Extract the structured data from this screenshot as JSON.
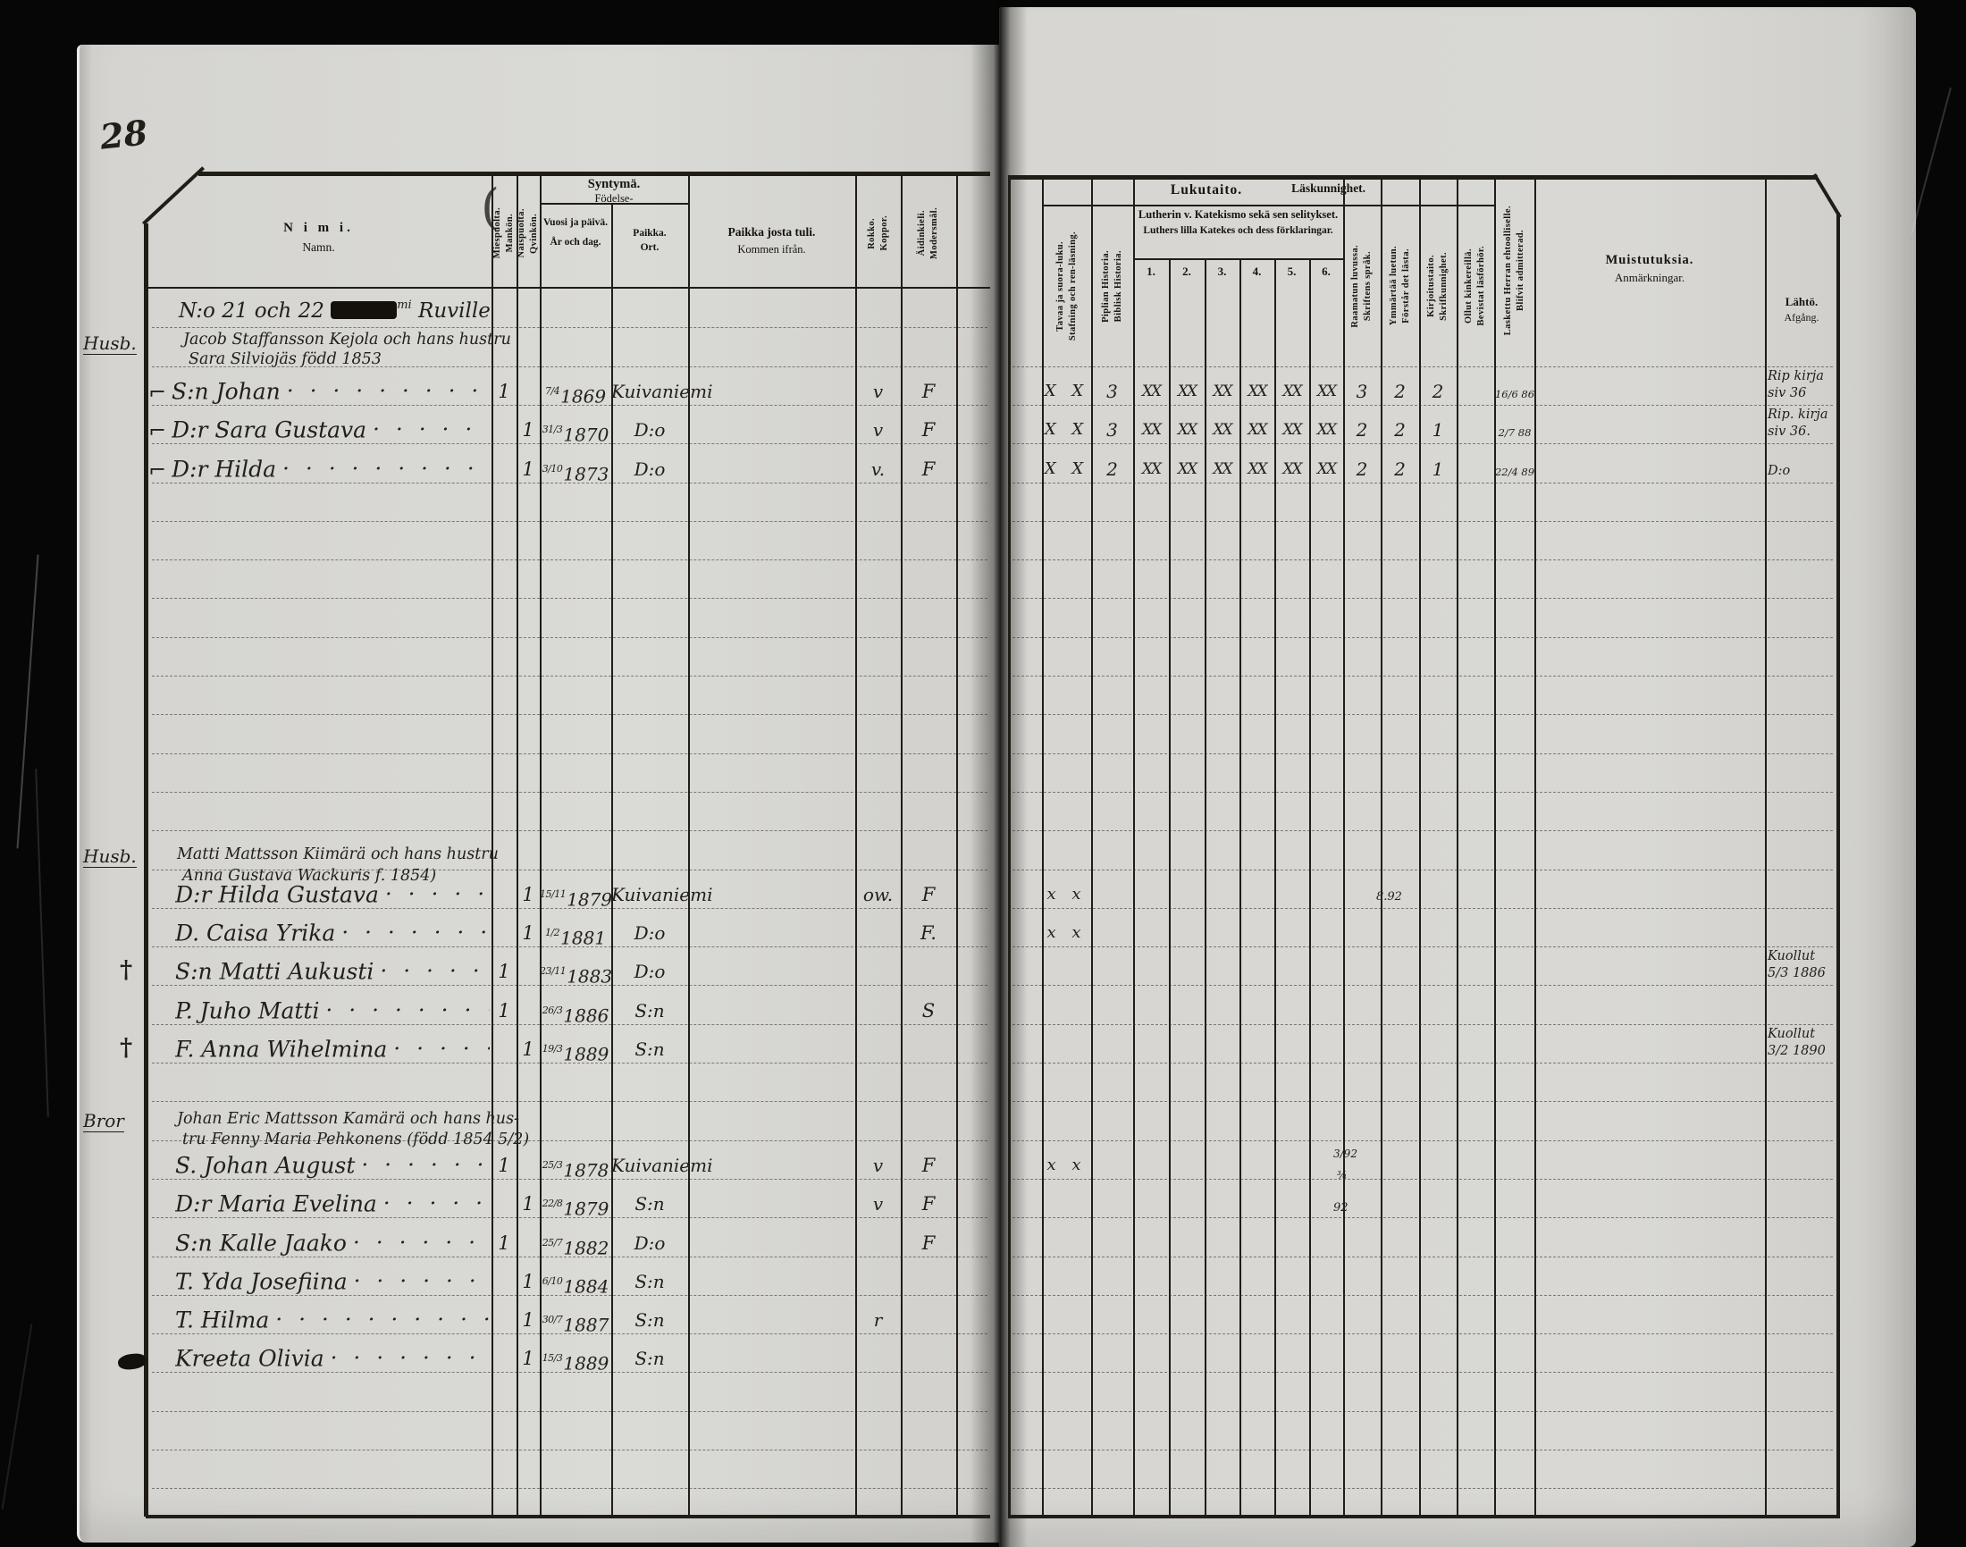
{
  "page_number": "28",
  "dot_leader": "· · · · · · · · · · · · · ·",
  "left_page": {
    "headers": {
      "name_fi": "N i m i.",
      "name_sv": "Namn.",
      "male_fi": "Miespuolta.",
      "male_sv": "Mankön.",
      "female_fi": "Naispuolta.",
      "female_sv": "Qvinkön.",
      "birth_fi": "Syntymä.",
      "birth_sv": "Födelse-",
      "date_fi": "Vuosi ja päivä.",
      "date_sv": "År och dag.",
      "place_fi": "Paikka.",
      "place_sv": "Ort.",
      "from_fi": "Paikka josta tuli.",
      "from_sv": "Kommen ifrån.",
      "pox_fi": "Rokko.",
      "pox_sv": "Koppor.",
      "tongue_fi": "Äidinkieli.",
      "tongue_sv": "Modersmål."
    }
  },
  "right_page": {
    "headers": {
      "reading_fi": "Lukutaito.",
      "reading_sv": "Läskunnighet.",
      "spelling_fi": "Tavaa ja suora-luku.",
      "spelling_sv": "Stafning och ren-läsning.",
      "bible_fi": "Piplian Historia.",
      "bible_sv": "Biblisk Historia.",
      "catechism_fi": "Lutherin v. Katekismo sekä sen selitykset.",
      "catechism_sv": "Luthers lilla Katekes och dess förklaringar.",
      "catechism_cols": [
        "1.",
        "2.",
        "3.",
        "4.",
        "5.",
        "6."
      ],
      "scripture_fi": "Raamatun luvussa.",
      "scripture_sv": "Skriftens språk.",
      "understands_fi": "Ymmärtää luetun.",
      "understands_sv": "Förstår det lästa.",
      "writing_fi": "Kirjoitustaito.",
      "writing_sv": "Skrifkunnighet.",
      "catechetical_fi": "Ollut kinkereillä.",
      "catechetical_sv": "Bevistat läsförhör.",
      "admitted_fi": "Laskettu Herran ehtoolliselle.",
      "admitted_sv": "Blifvit admitterad.",
      "remarks_fi": "Muistutuksia.",
      "remarks_sv": "Anmärkningar.",
      "departure_fi": "Lähtö.",
      "departure_sv": "Afgång."
    }
  },
  "families": [
    {
      "margin_label": "Husb.",
      "title": {
        "pre": "N:o 21 och 22 ",
        "struck": "Kanga",
        "sup": "mi",
        "post": " Ruville"
      },
      "parents": [
        "Jacob Staffansson Kejola och hans hustru",
        "Sara Silviojäs född 1853"
      ],
      "members": [
        {
          "mark": "bracket",
          "name": "S:n Johan",
          "mankon": "1",
          "date": "7/4",
          "year": "1869",
          "ort": "Kuivaniemi",
          "rokko": "v",
          "kieli": "F",
          "staf": "X X",
          "bibl": "3",
          "kat": [
            "XX",
            "XX",
            "XX",
            "XX",
            "XX",
            "XX"
          ],
          "sprak": "3",
          "forstar": "2",
          "skrif": "2",
          "admit": "16/6 86",
          "lahto": [
            "Rip kirja",
            "siv 36"
          ]
        },
        {
          "mark": "bracket",
          "name": "D:r Sara Gustava",
          "qvinkon": "1",
          "date": "31/3",
          "year": "1870",
          "ort": "D:o",
          "rokko": "v",
          "kieli": "F",
          "staf": "X X",
          "bibl": "3",
          "kat": [
            "XX",
            "XX",
            "XX",
            "XX",
            "XX",
            "XX"
          ],
          "sprak": "2",
          "forstar": "2",
          "skrif": "1",
          "admit": "2/7 88",
          "lahto": [
            "Rip. kirja",
            "siv 36."
          ]
        },
        {
          "mark": "bracket",
          "name": "D:r Hilda",
          "qvinkon": "1",
          "date": "3/10",
          "year": "1873",
          "ort": "D:o",
          "rokko": "v.",
          "kieli": "F",
          "staf": "X X",
          "bibl": "2",
          "kat": [
            "XX",
            "XX",
            "XX",
            "XX",
            "XX",
            "XX"
          ],
          "sprak": "2",
          "forstar": "2",
          "skrif": "1",
          "admit": "22/4 89",
          "lahto": [
            "D:o"
          ]
        }
      ]
    },
    {
      "margin_label": "Husb.",
      "parents": [
        "Matti Mattsson Kiimärä och hans hustru",
        "Anna Gustava Wackuris f. 1854)"
      ],
      "members": [
        {
          "name": "D:r Hilda Gustava",
          "qvinkon": "1",
          "date": "15/11",
          "year": "1879",
          "ort": "Kuivaniemi",
          "rokko": "ow.",
          "kieli": "F",
          "staf": "x x"
        },
        {
          "name": "D. Caisa Yrika",
          "qvinkon": "1",
          "date": "1/2",
          "year": "1881",
          "ort": "D:o",
          "kieli": "F.",
          "staf": "x x"
        },
        {
          "mark": "cross",
          "name": "S:n Matti Aukusti",
          "mankon": "1",
          "date": "23/11",
          "year": "1883",
          "ort": "D:o",
          "lahto": [
            "Kuollut",
            "5/3 1886"
          ]
        },
        {
          "name": "P. Juho Matti",
          "mankon": "1",
          "date": "26/3",
          "year": "1886",
          "ort": "S:n",
          "kieli": "S"
        },
        {
          "mark": "cross",
          "name": "F. Anna Wihelmina",
          "qvinkon": "1",
          "date": "19/3",
          "year": "1889",
          "ort": "S:n",
          "lahto": [
            "Kuollut",
            "3/2 1890"
          ]
        }
      ]
    },
    {
      "margin_label": "Bror",
      "parents": [
        "Johan Eric Mattsson Kamärä och hans hus-",
        "tru Fenny Maria Pehkonens (född 1854 5/2)"
      ],
      "members": [
        {
          "name": "S. Johan August",
          "mankon": "1",
          "date": "25/3",
          "year": "1878",
          "ort": "Kuivaniemi",
          "rokko": "v",
          "kieli": "F",
          "staf": "x x"
        },
        {
          "name": "D:r Maria Evelina",
          "qvinkon": "1",
          "date": "22/8",
          "year": "1879",
          "ort": "S:n",
          "rokko": "v",
          "kieli": "F"
        },
        {
          "name": "S:n Kalle Jaako",
          "mankon": "1",
          "date": "25/7",
          "year": "1882",
          "ort": "D:o",
          "kieli": "F"
        },
        {
          "name": "T. Yda Josefiina",
          "qvinkon": "1",
          "date": "6/10",
          "year": "1884",
          "ort": "S:n"
        },
        {
          "name": "T. Hilma",
          "qvinkon": "1",
          "date": "30/7",
          "year": "1887",
          "ort": "S:n",
          "rokko": "r"
        },
        {
          "mark": "blot",
          "name": "Kreeta Olivia",
          "qvinkon": "1",
          "date": "15/3",
          "year": "1889",
          "ort": "S:n"
        }
      ]
    }
  ],
  "ink_notes": [
    {
      "text": "8.92"
    },
    {
      "text": "3/92"
    },
    {
      "text": "¾"
    },
    {
      "text": "92"
    },
    {
      "text": "("
    }
  ]
}
